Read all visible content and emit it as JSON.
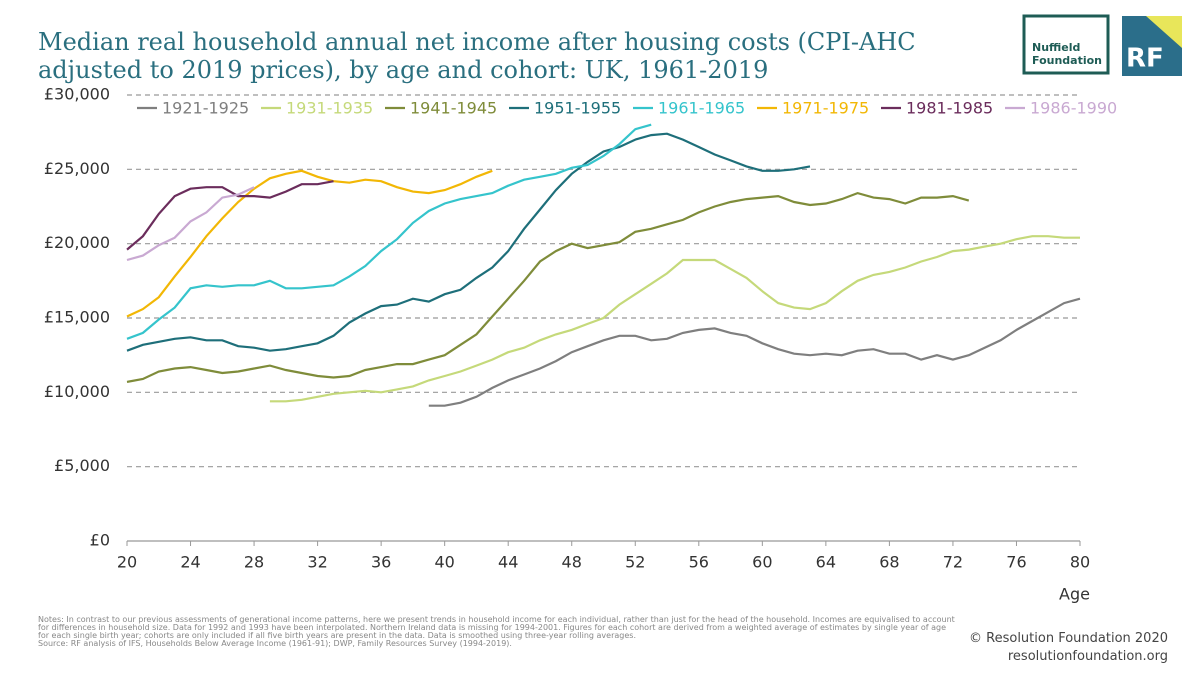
{
  "chart_data": {
    "type": "line",
    "title": "Median real household annual net income after housing costs (CPI-AHC adjusted to 2019 prices), by age and cohort: UK, 1961-2019",
    "x_label": "Age",
    "xlim": [
      20,
      80
    ],
    "xticks": [
      20,
      24,
      28,
      32,
      36,
      40,
      44,
      48,
      52,
      56,
      60,
      64,
      68,
      72,
      76,
      80
    ],
    "ylim": [
      0,
      30000
    ],
    "yticks": [
      {
        "value": 0,
        "label": "£0"
      },
      {
        "value": 5000,
        "label": "£5,000"
      },
      {
        "value": 10000,
        "label": "£10,000"
      },
      {
        "value": 15000,
        "label": "£15,000"
      },
      {
        "value": 20000,
        "label": "£20,000"
      },
      {
        "value": 25000,
        "label": "£25,000"
      },
      {
        "value": 30000,
        "label": "£30,000"
      }
    ],
    "grid": true,
    "series": [
      {
        "name": "1921-1925",
        "color": "#7f7f7f",
        "x": [
          39,
          40,
          41,
          42,
          43,
          44,
          45,
          46,
          47,
          48,
          49,
          50,
          51,
          52,
          53,
          54,
          55,
          56,
          57,
          58,
          59,
          60,
          61,
          62,
          63,
          64,
          65,
          66,
          67,
          68,
          69,
          70,
          71,
          72,
          73,
          74,
          75,
          76,
          77,
          78,
          79,
          80
        ],
        "values": [
          9100,
          9100,
          9300,
          9700,
          10300,
          10800,
          11200,
          11600,
          12100,
          12700,
          13100,
          13500,
          13800,
          13800,
          13500,
          13600,
          14000,
          14200,
          14300,
          14000,
          13800,
          13300,
          12900,
          12600,
          12500,
          12600,
          12500,
          12800,
          12900,
          12600,
          12600,
          12200,
          12500,
          12200,
          12500,
          13000,
          13500,
          14200,
          14800,
          15400,
          16000,
          16300
        ]
      },
      {
        "name": "1931-1935",
        "color": "#c5d97a",
        "x": [
          29,
          30,
          31,
          32,
          33,
          34,
          35,
          36,
          37,
          38,
          39,
          40,
          41,
          42,
          43,
          44,
          45,
          46,
          47,
          48,
          49,
          50,
          51,
          52,
          53,
          54,
          55,
          56,
          57,
          58,
          59,
          60,
          61,
          62,
          63,
          64,
          65,
          66,
          67,
          68,
          69,
          70,
          71,
          72,
          73,
          74,
          75,
          76,
          77,
          78,
          79,
          80
        ],
        "values": [
          9400,
          9400,
          9500,
          9700,
          9900,
          10000,
          10100,
          10000,
          10200,
          10400,
          10800,
          11100,
          11400,
          11800,
          12200,
          12700,
          13000,
          13500,
          13900,
          14200,
          14600,
          15000,
          15900,
          16600,
          17300,
          18000,
          18900,
          18900,
          18900,
          18300,
          17700,
          16800,
          16000,
          15700,
          15600,
          16000,
          16800,
          17500,
          17900,
          18100,
          18400,
          18800,
          19100,
          19500,
          19600,
          19800,
          20000,
          20300,
          20500,
          20500,
          20400,
          20400
        ]
      },
      {
        "name": "1941-1945",
        "color": "#7f8c3a",
        "x": [
          20,
          21,
          22,
          23,
          24,
          25,
          26,
          27,
          28,
          29,
          30,
          31,
          32,
          33,
          34,
          35,
          36,
          37,
          38,
          39,
          40,
          41,
          42,
          43,
          44,
          45,
          46,
          47,
          48,
          49,
          50,
          51,
          52,
          53,
          54,
          55,
          56,
          57,
          58,
          59,
          60,
          61,
          62,
          63,
          64,
          65,
          66,
          67,
          68,
          69,
          70,
          71,
          72,
          73
        ],
        "values": [
          10700,
          10900,
          11400,
          11600,
          11700,
          11500,
          11300,
          11400,
          11600,
          11800,
          11500,
          11300,
          11100,
          11000,
          11100,
          11500,
          11700,
          11900,
          11900,
          12200,
          12500,
          13200,
          13900,
          15100,
          16300,
          17500,
          18800,
          19500,
          20000,
          19700,
          19900,
          20100,
          20800,
          21000,
          21300,
          21600,
          22100,
          22500,
          22800,
          23000,
          23100,
          23200,
          22800,
          22600,
          22700,
          23000,
          23400,
          23100,
          23000,
          22700,
          23100,
          23100,
          23200,
          22900
        ]
      },
      {
        "name": "1951-1955",
        "color": "#1e6f7a",
        "x": [
          20,
          21,
          22,
          23,
          24,
          25,
          26,
          27,
          28,
          29,
          30,
          31,
          32,
          33,
          34,
          35,
          36,
          37,
          38,
          39,
          40,
          41,
          42,
          43,
          44,
          45,
          46,
          47,
          48,
          49,
          50,
          51,
          52,
          53,
          54,
          55,
          56,
          57,
          58,
          59,
          60,
          61,
          62,
          63
        ],
        "values": [
          12800,
          13200,
          13400,
          13600,
          13700,
          13500,
          13500,
          13100,
          13000,
          12800,
          12900,
          13100,
          13300,
          13800,
          14700,
          15300,
          15800,
          15900,
          16300,
          16100,
          16600,
          16900,
          17700,
          18400,
          19500,
          21000,
          22300,
          23600,
          24700,
          25500,
          26200,
          26500,
          27000,
          27300,
          27400,
          27000,
          26500,
          26000,
          25600,
          25200,
          24900,
          24900,
          25000,
          25200
        ]
      },
      {
        "name": "1961-1965",
        "color": "#35c4cc",
        "x": [
          20,
          21,
          22,
          23,
          24,
          25,
          26,
          27,
          28,
          29,
          30,
          31,
          32,
          33,
          34,
          35,
          36,
          37,
          38,
          39,
          40,
          41,
          42,
          43,
          44,
          45,
          46,
          47,
          48,
          49,
          50,
          51,
          52,
          53
        ],
        "values": [
          13600,
          14000,
          14900,
          15700,
          17000,
          17200,
          17100,
          17200,
          17200,
          17500,
          17000,
          17000,
          17100,
          17200,
          17800,
          18500,
          19500,
          20300,
          21400,
          22200,
          22700,
          23000,
          23200,
          23400,
          23900,
          24300,
          24500,
          24700,
          25100,
          25300,
          25900,
          26700,
          27700,
          28000
        ]
      },
      {
        "name": "1971-1975",
        "color": "#f2b705",
        "x": [
          20,
          21,
          22,
          23,
          24,
          25,
          26,
          27,
          28,
          29,
          30,
          31,
          32,
          33,
          34,
          35,
          36,
          37,
          38,
          39,
          40,
          41,
          42,
          43
        ],
        "values": [
          15100,
          15600,
          16400,
          17800,
          19100,
          20500,
          21700,
          22800,
          23700,
          24400,
          24700,
          24900,
          24500,
          24200,
          24100,
          24300,
          24200,
          23800,
          23500,
          23400,
          23600,
          24000,
          24500,
          24900
        ]
      },
      {
        "name": "1981-1985",
        "color": "#6b2d5c",
        "x": [
          20,
          21,
          22,
          23,
          24,
          25,
          26,
          27,
          28,
          29,
          30,
          31,
          32,
          33
        ],
        "values": [
          19600,
          20500,
          22000,
          23200,
          23700,
          23800,
          23800,
          23200,
          23200,
          23100,
          23500,
          24000,
          24000,
          24200
        ]
      },
      {
        "name": "1986-1990",
        "color": "#c9a9d2",
        "x": [
          20,
          21,
          22,
          23,
          24,
          25,
          26,
          27,
          28
        ],
        "values": [
          18900,
          19200,
          19900,
          20400,
          21500,
          22100,
          23100,
          23300,
          23800
        ]
      }
    ]
  },
  "notes": "Notes: In contrast to our previous assessments of generational income patterns, here we present trends in household income for each individual, rather than just for the head of the household. Incomes are equivalised to account for differences in household size. Data for 1992 and 1993 have been interpolated. Northern Ireland data is missing for 1994-2001. Figures for each cohort are derived from a weighted average of estimates by single year of age for each single birth year; cohorts are only included if all five birth years are present in the data. Data is smoothed using three-year rolling averages.",
  "source": "Source: RF analysis of IFS, Households Below Average Income (1961-91); DWP, Family Resources Survey (1994-2019).",
  "copyright": "© Resolution Foundation 2020",
  "website": "resolutionfoundation.org",
  "logos": {
    "nuffield_1": "Nuffield",
    "nuffield_2": "Foundation",
    "rf": "RF"
  }
}
